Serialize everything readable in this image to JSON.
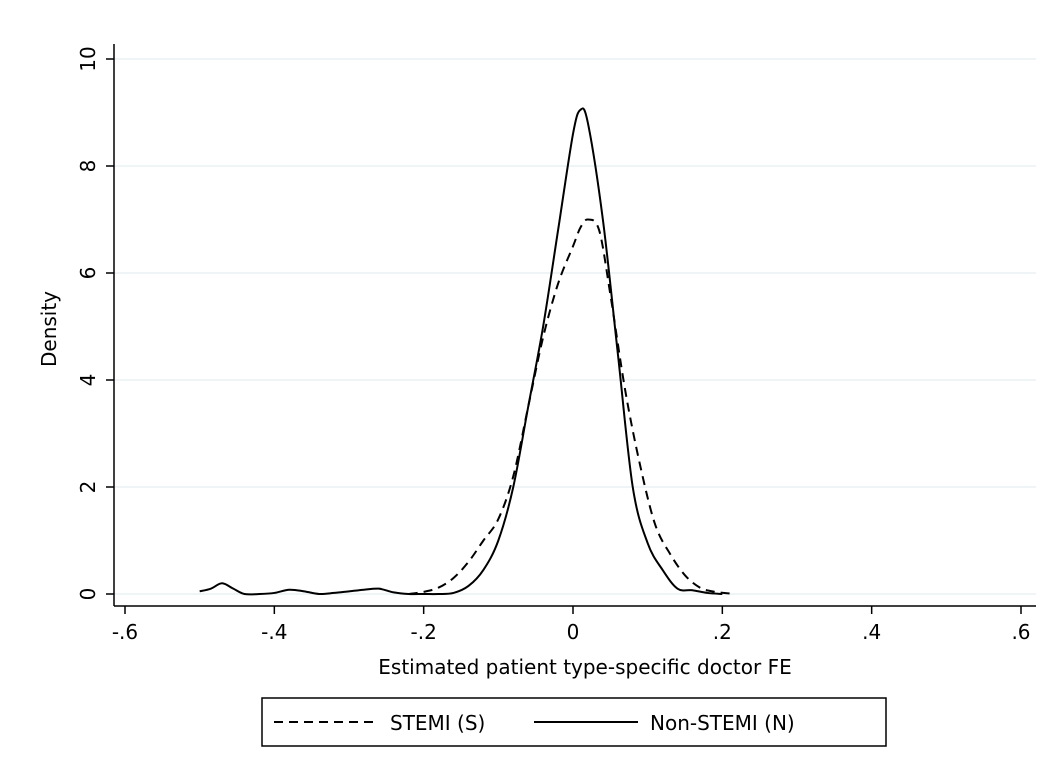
{
  "chart_data": {
    "type": "line",
    "xlabel": "Estimated patient type-specific doctor FE",
    "ylabel": "Density",
    "xlim": [
      -0.6,
      0.6
    ],
    "ylim": [
      0,
      10
    ],
    "x_ticks": [
      {
        "value": -0.6,
        "label": "-.6"
      },
      {
        "value": -0.4,
        "label": "-.4"
      },
      {
        "value": -0.2,
        "label": "-.2"
      },
      {
        "value": 0,
        "label": "0"
      },
      {
        "value": 0.2,
        "label": ".2"
      },
      {
        "value": 0.4,
        "label": ".4"
      },
      {
        "value": 0.6,
        "label": ".6"
      }
    ],
    "y_ticks": [
      {
        "value": 0,
        "label": "0"
      },
      {
        "value": 2,
        "label": "2"
      },
      {
        "value": 4,
        "label": "4"
      },
      {
        "value": 6,
        "label": "6"
      },
      {
        "value": 8,
        "label": "8"
      },
      {
        "value": 10,
        "label": "10"
      }
    ],
    "grid": "horizontal",
    "legend": "bottom",
    "series": [
      {
        "name": "STEMI (S)",
        "style": "dashed",
        "color": "#000000",
        "points": [
          [
            -0.22,
            0.0
          ],
          [
            -0.2,
            0.04
          ],
          [
            -0.18,
            0.12
          ],
          [
            -0.16,
            0.3
          ],
          [
            -0.14,
            0.6
          ],
          [
            -0.12,
            1.0
          ],
          [
            -0.1,
            1.4
          ],
          [
            -0.08,
            2.2
          ],
          [
            -0.06,
            3.5
          ],
          [
            -0.04,
            4.8
          ],
          [
            -0.02,
            5.8
          ],
          [
            0.0,
            6.5
          ],
          [
            0.01,
            6.85
          ],
          [
            0.02,
            7.0
          ],
          [
            0.035,
            6.8
          ],
          [
            0.05,
            5.6
          ],
          [
            0.07,
            3.8
          ],
          [
            0.09,
            2.4
          ],
          [
            0.11,
            1.3
          ],
          [
            0.13,
            0.75
          ],
          [
            0.15,
            0.35
          ],
          [
            0.17,
            0.12
          ],
          [
            0.19,
            0.04
          ],
          [
            0.21,
            0.01
          ]
        ]
      },
      {
        "name": "Non-STEMI (N)",
        "style": "solid",
        "color": "#000000",
        "points": [
          [
            -0.5,
            0.05
          ],
          [
            -0.485,
            0.1
          ],
          [
            -0.47,
            0.2
          ],
          [
            -0.455,
            0.1
          ],
          [
            -0.44,
            0.0
          ],
          [
            -0.42,
            0.0
          ],
          [
            -0.4,
            0.02
          ],
          [
            -0.38,
            0.08
          ],
          [
            -0.36,
            0.05
          ],
          [
            -0.34,
            0.0
          ],
          [
            -0.32,
            0.02
          ],
          [
            -0.3,
            0.05
          ],
          [
            -0.28,
            0.08
          ],
          [
            -0.26,
            0.1
          ],
          [
            -0.24,
            0.03
          ],
          [
            -0.22,
            0.0
          ],
          [
            -0.2,
            0.0
          ],
          [
            -0.18,
            0.0
          ],
          [
            -0.16,
            0.02
          ],
          [
            -0.14,
            0.15
          ],
          [
            -0.12,
            0.45
          ],
          [
            -0.1,
            1.0
          ],
          [
            -0.08,
            2.0
          ],
          [
            -0.06,
            3.5
          ],
          [
            -0.04,
            5.0
          ],
          [
            -0.02,
            6.8
          ],
          [
            0.0,
            8.6
          ],
          [
            0.01,
            9.05
          ],
          [
            0.02,
            8.8
          ],
          [
            0.04,
            7.0
          ],
          [
            0.06,
            4.5
          ],
          [
            0.08,
            2.0
          ],
          [
            0.1,
            0.95
          ],
          [
            0.12,
            0.45
          ],
          [
            0.14,
            0.1
          ],
          [
            0.16,
            0.07
          ],
          [
            0.18,
            0.02
          ],
          [
            0.2,
            0.0
          ]
        ]
      }
    ]
  }
}
